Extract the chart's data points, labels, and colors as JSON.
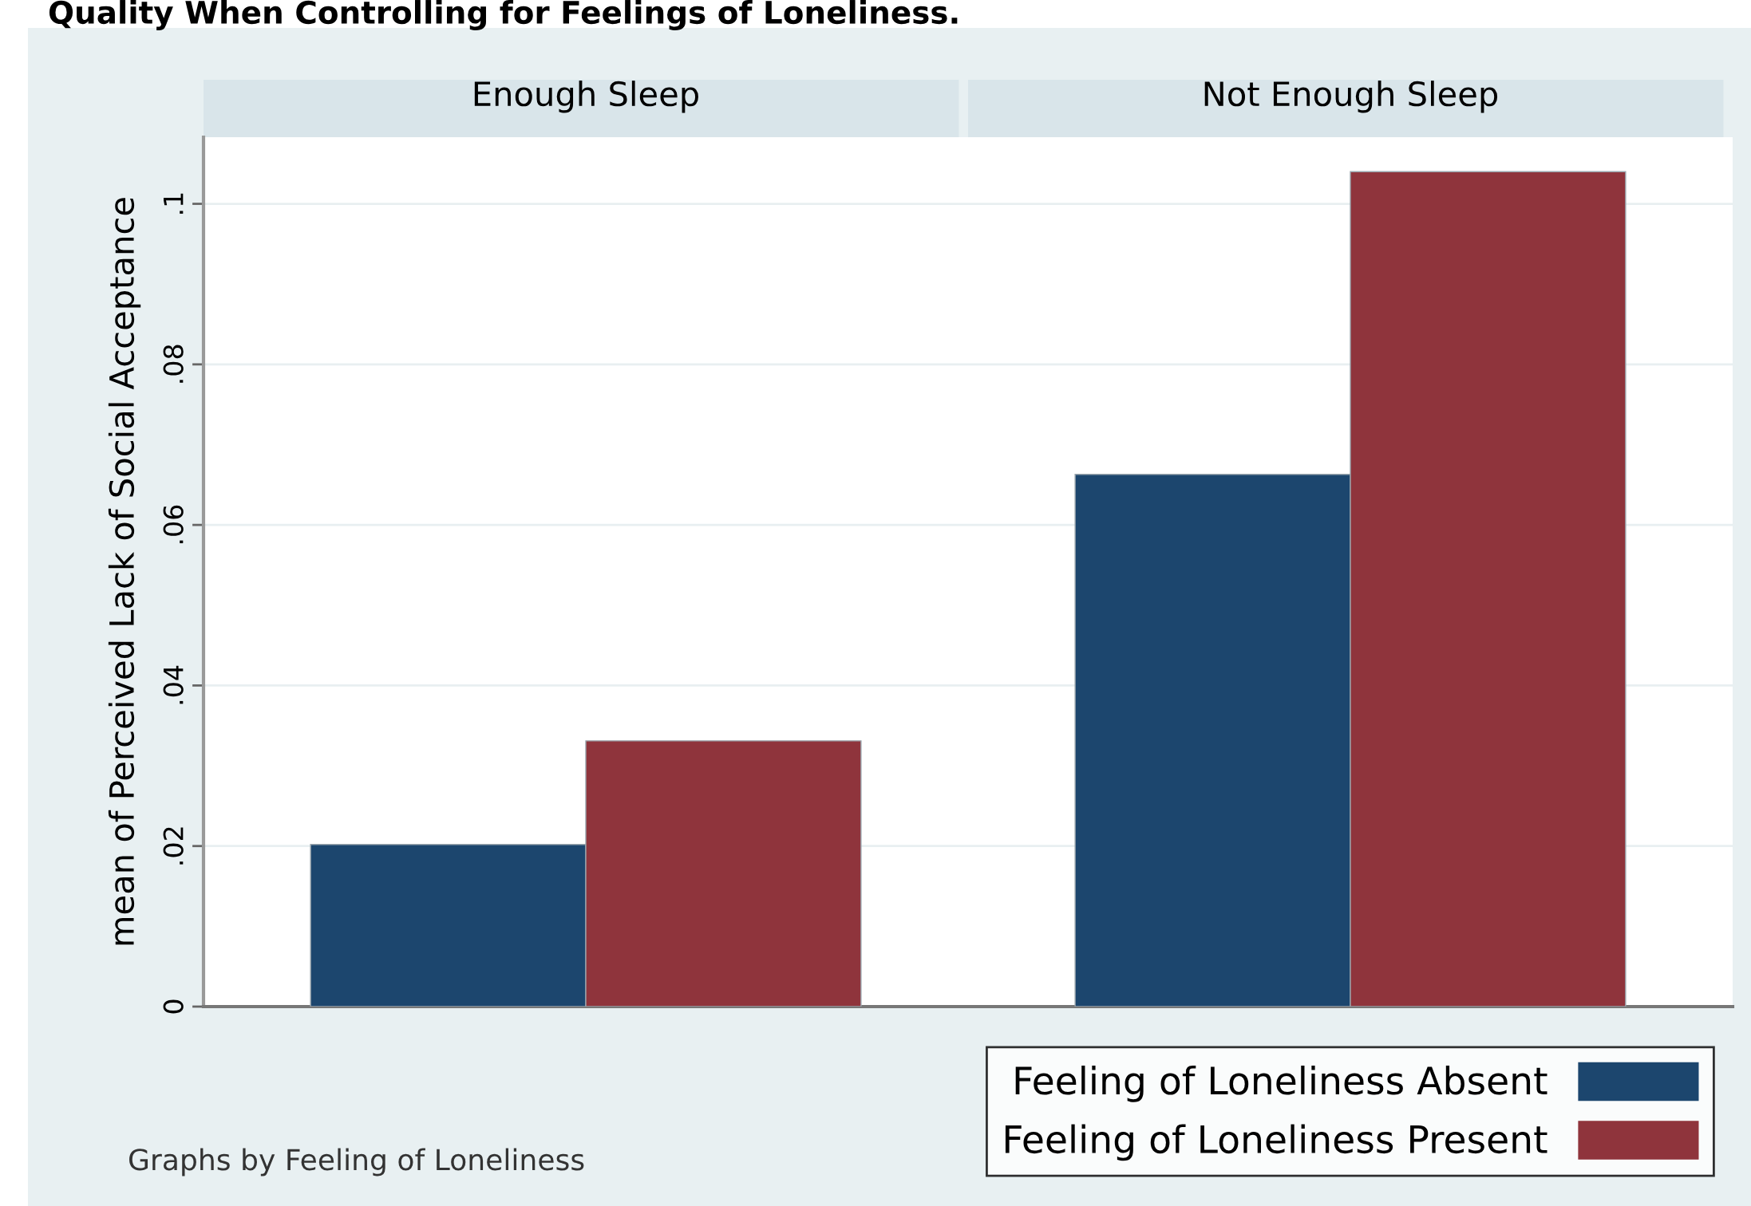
{
  "chart_data": {
    "type": "bar",
    "title": "Quality When Controlling for Feelings of Loneliness.",
    "ylabel": "mean of Perceived Lack of Social Acceptance",
    "categories": [
      "Enough Sleep",
      "Not Enough Sleep"
    ],
    "series": [
      {
        "name": "Feeling of Loneliness Absent",
        "color": "#1c466e",
        "values": [
          0.0202,
          0.0663
        ]
      },
      {
        "name": "Feeling of Loneliness Present",
        "color": "#8f343c",
        "values": [
          0.0331,
          0.104
        ]
      }
    ],
    "ylim": [
      0,
      0.1083
    ],
    "yticks": [
      {
        "value": 0,
        "label": "0"
      },
      {
        "value": 0.02,
        "label": ".02"
      },
      {
        "value": 0.04,
        "label": ".04"
      },
      {
        "value": 0.06,
        "label": ".06"
      },
      {
        "value": 0.08,
        "label": ".08"
      },
      {
        "value": 0.1,
        "label": ".1"
      }
    ],
    "grid": "y",
    "legend": "bottom right",
    "annotations": [
      "Graphs by Feeling of Loneliness"
    ]
  }
}
